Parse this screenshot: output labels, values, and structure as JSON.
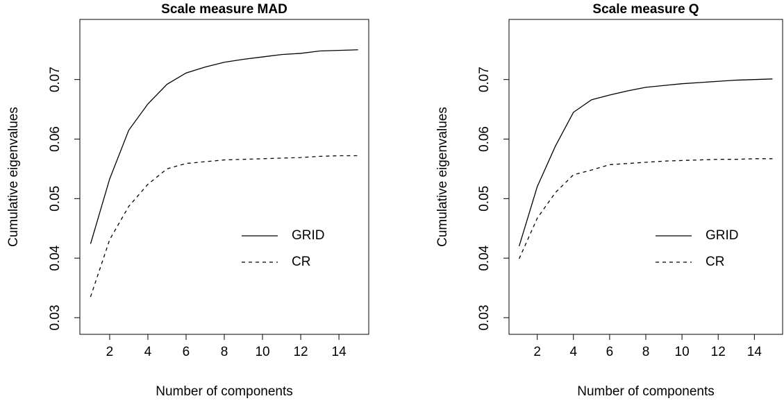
{
  "chart_data": [
    {
      "type": "line",
      "title": "Scale measure MAD",
      "xlabel": "Number of components",
      "ylabel": "Cumulative eigenvalues",
      "x": [
        1,
        2,
        3,
        4,
        5,
        6,
        7,
        8,
        9,
        10,
        11,
        12,
        13,
        14,
        15
      ],
      "xlim": [
        0.44,
        15.56
      ],
      "xticks": [
        2,
        4,
        6,
        8,
        10,
        12,
        14
      ],
      "ylim": [
        0.0272,
        0.0801
      ],
      "yticks": [
        0.03,
        0.04,
        0.05,
        0.06,
        0.07
      ],
      "legend": "right",
      "series": [
        {
          "name": "GRID",
          "color": "#000000",
          "linestyle": "solid",
          "values": [
            0.0424,
            0.0533,
            0.0615,
            0.0659,
            0.0692,
            0.0711,
            0.0721,
            0.0729,
            0.0734,
            0.0738,
            0.0742,
            0.0744,
            0.0748,
            0.0749,
            0.075
          ]
        },
        {
          "name": "CR",
          "color": "#000000",
          "linestyle": "dashed",
          "values": [
            0.0335,
            0.0431,
            0.0487,
            0.0524,
            0.055,
            0.0559,
            0.0562,
            0.0565,
            0.0566,
            0.0567,
            0.0568,
            0.0569,
            0.0571,
            0.0572,
            0.0572
          ]
        }
      ]
    },
    {
      "type": "line",
      "title": "Scale measure Q",
      "xlabel": "Number of components",
      "ylabel": "Cumulative eigenvalues",
      "x": [
        1,
        2,
        3,
        4,
        5,
        6,
        7,
        8,
        9,
        10,
        11,
        12,
        13,
        14,
        15
      ],
      "xlim": [
        0.44,
        15.56
      ],
      "xticks": [
        2,
        4,
        6,
        8,
        10,
        12,
        14
      ],
      "ylim": [
        0.0272,
        0.0801
      ],
      "yticks": [
        0.03,
        0.04,
        0.05,
        0.06,
        0.07
      ],
      "legend": "right",
      "series": [
        {
          "name": "GRID",
          "color": "#000000",
          "linestyle": "solid",
          "values": [
            0.042,
            0.052,
            0.0588,
            0.0645,
            0.0666,
            0.0674,
            0.0681,
            0.0687,
            0.069,
            0.0693,
            0.0695,
            0.0697,
            0.0699,
            0.07,
            0.0701
          ]
        },
        {
          "name": "CR",
          "color": "#000000",
          "linestyle": "dashed",
          "values": [
            0.0399,
            0.0467,
            0.051,
            0.054,
            0.0548,
            0.0557,
            0.0559,
            0.0561,
            0.0563,
            0.0564,
            0.0565,
            0.0566,
            0.0566,
            0.0567,
            0.0567
          ]
        }
      ]
    }
  ]
}
